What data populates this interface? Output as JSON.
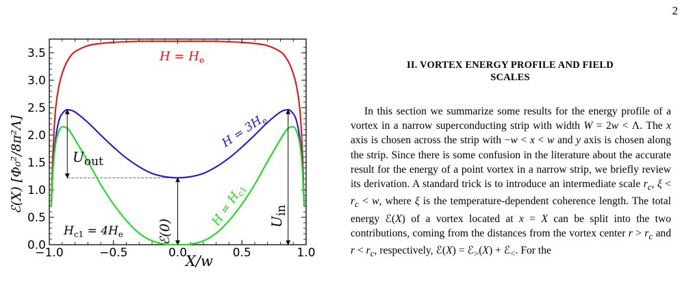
{
  "page": {
    "number": "2"
  },
  "figure": {
    "y_axis_label": "ℰ(X) [Φ₀²/8π²Λ]",
    "x_axis_label": "X/w",
    "annotations": {
      "h_e": "H = H",
      "h_e_sub": "e",
      "h_3e": "H = 3H",
      "h_3e_sub": "e",
      "h_c1": "H = H",
      "h_c1_sub": "c1",
      "hc1_relation": "H",
      "hc1_relation_sub": "c1",
      "hc1_relation_rhs": " = 4H",
      "hc1_relation_rhs_sub": "e",
      "u_out": "U",
      "u_out_sub": "out",
      "u_in": "U",
      "u_in_sub": "in",
      "e0": "ℰ(0)"
    },
    "chart_data": {
      "type": "line",
      "xlabel": "X/w",
      "ylabel": "ℰ(X) [Φ₀²/8π²Λ]",
      "xlim": [
        -1.0,
        1.0
      ],
      "ylim": [
        0.0,
        3.75
      ],
      "x_ticks": [
        -1.0,
        -0.5,
        0.0,
        0.5,
        1.0
      ],
      "x_tick_labels": [
        "−1.0",
        "−0.5",
        "0.0",
        "0.5",
        "1.0"
      ],
      "y_ticks": [
        0.0,
        0.5,
        1.0,
        1.5,
        2.0,
        2.5,
        3.0,
        3.5
      ],
      "y_tick_labels": [
        "0.0",
        "0.5",
        "1.0",
        "1.5",
        "2.0",
        "2.5",
        "3.0",
        "3.5"
      ],
      "series": [
        {
          "name": "H = He",
          "color": "#e8130f",
          "x": [
            -0.985,
            -0.97,
            -0.95,
            -0.92,
            -0.88,
            -0.84,
            -0.8,
            -0.7,
            -0.6,
            -0.5,
            -0.4,
            -0.3,
            -0.2,
            -0.1,
            0.0,
            0.1,
            0.2,
            0.3,
            0.4,
            0.5,
            0.6,
            0.7,
            0.8,
            0.84,
            0.88,
            0.92,
            0.95,
            0.97,
            0.985
          ],
          "y": [
            0.7,
            1.75,
            2.5,
            2.95,
            3.25,
            3.42,
            3.52,
            3.63,
            3.67,
            3.69,
            3.7,
            3.71,
            3.71,
            3.71,
            3.71,
            3.71,
            3.71,
            3.71,
            3.7,
            3.69,
            3.67,
            3.63,
            3.52,
            3.42,
            3.25,
            2.95,
            2.5,
            1.75,
            0.7
          ]
        },
        {
          "name": "H = 3He",
          "color": "#1717e0",
          "x": [
            -0.985,
            -0.97,
            -0.95,
            -0.92,
            -0.88,
            -0.85,
            -0.8,
            -0.7,
            -0.6,
            -0.5,
            -0.4,
            -0.3,
            -0.2,
            -0.1,
            0.0,
            0.1,
            0.2,
            0.3,
            0.4,
            0.5,
            0.6,
            0.7,
            0.8,
            0.85,
            0.88,
            0.92,
            0.95,
            0.97,
            0.985
          ],
          "y": [
            0.7,
            1.45,
            1.95,
            2.3,
            2.44,
            2.46,
            2.42,
            2.23,
            2.0,
            1.78,
            1.58,
            1.42,
            1.3,
            1.24,
            1.22,
            1.24,
            1.3,
            1.42,
            1.58,
            1.78,
            2.0,
            2.23,
            2.42,
            2.46,
            2.44,
            2.3,
            1.95,
            1.45,
            0.7
          ]
        },
        {
          "name": "H = Hc1",
          "color": "#16e016",
          "x": [
            -0.985,
            -0.97,
            -0.95,
            -0.92,
            -0.89,
            -0.85,
            -0.8,
            -0.7,
            -0.6,
            -0.5,
            -0.4,
            -0.3,
            -0.2,
            -0.1,
            0.0,
            0.1,
            0.2,
            0.3,
            0.4,
            0.5,
            0.6,
            0.7,
            0.8,
            0.85,
            0.89,
            0.92,
            0.95,
            0.97,
            0.985
          ],
          "y": [
            0.7,
            1.4,
            1.85,
            2.1,
            2.15,
            2.1,
            1.92,
            1.52,
            1.1,
            0.74,
            0.44,
            0.21,
            0.07,
            0.01,
            0.0,
            0.01,
            0.07,
            0.21,
            0.44,
            0.74,
            1.1,
            1.52,
            1.92,
            2.1,
            2.15,
            2.1,
            1.85,
            1.4,
            0.7
          ]
        }
      ],
      "reference_line": {
        "y": 1.22,
        "x_from": -0.86,
        "x_to": 0.0,
        "style": "dashed",
        "color": "#555555"
      },
      "arrows": [
        {
          "name": "u-out",
          "x": -0.86,
          "y_from": 1.22,
          "y_to": 2.46
        },
        {
          "name": "e0",
          "x": 0.0,
          "y_from": 0.0,
          "y_to": 1.22
        },
        {
          "name": "u-in",
          "x": 0.86,
          "y_from": 0.0,
          "y_to": 2.46
        }
      ]
    }
  },
  "section": {
    "title_line1": "II.   VORTEX ENERGY PROFILE AND FIELD",
    "title_line2": "SCALES"
  },
  "body": {
    "t1": "In this section we summarize some results for the energy profile of a vortex in a narrow superconducting strip with width ",
    "m1": "W",
    "t2": " = 2",
    "m2": "w",
    "t3": " < Λ. The ",
    "m3": "x",
    "t4": " axis is chosen across the strip with −",
    "m4": "w",
    "t5": " < ",
    "m5": "x",
    "t6": " < ",
    "m6": "w",
    "t7": " and ",
    "m7": "y",
    "t8": " axis is chosen along the strip. Since there is some confusion in the literature about the accurate result for the energy of a point vortex in a narrow strip, we briefly review its derivation. A standard trick is to introduce an intermediate scale ",
    "m8": "r",
    "m8s": "c",
    "t9": ", ",
    "m9": "ξ",
    "t10": " < ",
    "m10": "r",
    "m10s": "c",
    "t11": " < ",
    "m11": "w",
    "t12": ", where ",
    "m12": "ξ",
    "t13": " is the temperature-dependent coherence length. The total energy ℰ(",
    "m13": "X",
    "t14": ") of a vortex located at ",
    "m14": "x",
    "t15": " = ",
    "m15": "X",
    "t16": " can be split into the two contributions, coming from the distances from the vortex center ",
    "m16": "r",
    "t17": " > ",
    "m17": "r",
    "m17s": "c",
    "t18": " and ",
    "m18": "r",
    "t19": " < ",
    "m19": "r",
    "m19s": "c",
    "t20": ", respectively, ℰ(",
    "m20": "X",
    "t21": ") = ℰ",
    "m21s": ">",
    "t22": "(",
    "m22": "X",
    "t23": ") + ℰ",
    "m23s": "<",
    "t24": ". For the"
  }
}
